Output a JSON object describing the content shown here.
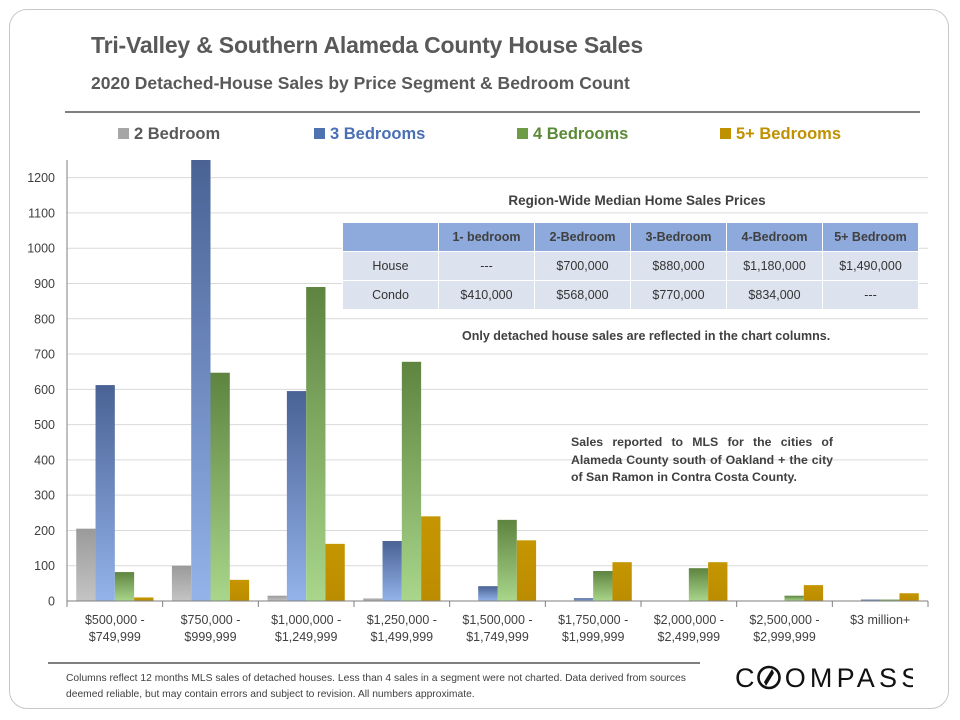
{
  "title": "Tri-Valley & Southern Alameda County House Sales",
  "subtitle": "2020 Detached-House Sales by Price Segment & Bedroom Count",
  "colors": {
    "bed2": "#a6a6a6",
    "bed3": "#6f8fc6",
    "bed4": "#7faa5a",
    "bed5": "#bf9000",
    "gridline": "#d9d9d9",
    "axis": "#7f7f7f"
  },
  "legend": [
    {
      "label": "2 Bedroom",
      "color": "#a6a6a6",
      "text_color": "#595959"
    },
    {
      "label": "3 Bedrooms",
      "color": "#4f72b0",
      "text_color": "#4a6fb5"
    },
    {
      "label": "4 Bedrooms",
      "color": "#6e9b46",
      "text_color": "#5b8a37"
    },
    {
      "label": "5+ Bedrooms",
      "color": "#bf9000",
      "text_color": "#bf9000"
    }
  ],
  "chart_data": {
    "type": "bar",
    "categories": [
      [
        "$500,000 -",
        "$749,999"
      ],
      [
        "$750,000 -",
        "$999,999"
      ],
      [
        "$1,000,000 -",
        "$1,249,999"
      ],
      [
        "$1,250,000 -",
        "$1,499,999"
      ],
      [
        "$1,500,000 -",
        "$1,749,999"
      ],
      [
        "$1,750,000 -",
        "$1,999,999"
      ],
      [
        "$2,000,000 -",
        "$2,499,999"
      ],
      [
        "$2,500,000 -",
        "$2,999,999"
      ],
      [
        "$3 million+"
      ]
    ],
    "series": [
      {
        "name": "2 Bedroom",
        "values": [
          205,
          100,
          15,
          7,
          0,
          0,
          0,
          0,
          0
        ]
      },
      {
        "name": "3 Bedrooms",
        "values": [
          612,
          1250,
          595,
          170,
          42,
          8,
          0,
          0,
          4
        ]
      },
      {
        "name": "4 Bedrooms",
        "values": [
          82,
          647,
          890,
          678,
          230,
          85,
          93,
          15,
          4
        ]
      },
      {
        "name": "5+ Bedrooms",
        "values": [
          10,
          60,
          162,
          240,
          172,
          110,
          110,
          45,
          22
        ]
      }
    ],
    "ylim": [
      0,
      1250
    ],
    "yticks": [
      0,
      100,
      200,
      300,
      400,
      500,
      600,
      700,
      800,
      900,
      1000,
      1100,
      1200
    ],
    "grid": true,
    "legend_position": "top"
  },
  "median_table": {
    "title": "Region-Wide Median Home Sales Prices",
    "headers": [
      "",
      "1- bedroom",
      "2-Bedroom",
      "3-Bedroom",
      "4-Bedroom",
      "5+ Bedroom"
    ],
    "rows": [
      {
        "label": "House",
        "values": [
          "---",
          "$700,000",
          "$880,000",
          "$1,180,000",
          "$1,490,000"
        ]
      },
      {
        "label": "Condo",
        "values": [
          "$410,000",
          "$568,000",
          "$770,000",
          "$834,000",
          "---"
        ]
      }
    ]
  },
  "median_note": "Only detached house sales are reflected in the chart columns.",
  "sales_note": "Sales reported to MLS for the cities of Alameda County south of Oakland + the city of San Ramon in Contra Costa County.",
  "footer_note": "Columns reflect 12 months MLS sales of detached houses. Less than 4 sales in a segment were not charted. Data derived from sources deemed reliable, but may contain errors and subject to revision. All numbers approximate.",
  "logo_text": "COMPASS"
}
